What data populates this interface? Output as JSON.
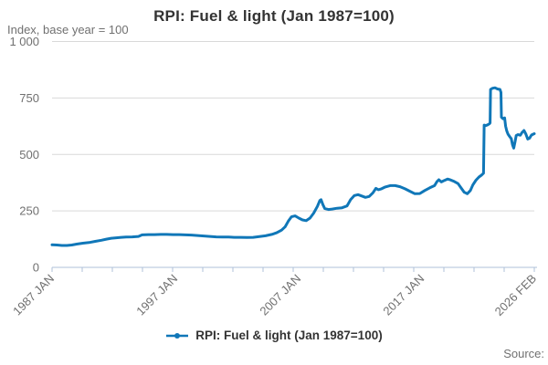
{
  "page": {
    "title": "RPI: Fuel & light (Jan 1987=100)",
    "subtitle": "Index, base year = 100"
  },
  "legend": {
    "label": "RPI: Fuel & light (Jan 1987=100)"
  },
  "footer": {
    "source_label": "Source:"
  },
  "colors": {
    "line": "#1077b8",
    "grid": "#d9d9d9",
    "axis": "#afc1d8",
    "muted_text": "#707070",
    "title_text": "#333333"
  },
  "chart_data": {
    "type": "line",
    "title": "RPI: Fuel & light (Jan 1987=100)",
    "subtitle": "Index, base year = 100",
    "xlabel": "",
    "ylabel": "Index, base year = 100",
    "ylim": [
      0,
      1000
    ],
    "yticks": [
      0,
      250,
      500,
      750,
      1000
    ],
    "ytick_labels": [
      "0",
      "250",
      "500",
      "750",
      "1 000"
    ],
    "xlim": [
      1987.0,
      2026.083
    ],
    "x_minor_tick_count": 17,
    "x_tick_labels": [
      {
        "text": "1987 JAN",
        "x": 1987.0
      },
      {
        "text": "1997 JAN",
        "x": 1997.0
      },
      {
        "text": "2007 JAN",
        "x": 2007.0
      },
      {
        "text": "2017 JAN",
        "x": 2017.0
      },
      {
        "text": "2026 FEB",
        "x": 2026.083
      }
    ],
    "grid": "horizontal",
    "legend_position": "bottom",
    "series": [
      {
        "name": "RPI: Fuel & light (Jan 1987=100)",
        "color": "#1077b8",
        "points": [
          [
            1987.0,
            100
          ],
          [
            1987.4,
            99
          ],
          [
            1987.8,
            97
          ],
          [
            1988.2,
            97
          ],
          [
            1988.6,
            99
          ],
          [
            1989.0,
            103
          ],
          [
            1989.5,
            107
          ],
          [
            1990.0,
            110
          ],
          [
            1990.5,
            115
          ],
          [
            1991.0,
            120
          ],
          [
            1991.4,
            125
          ],
          [
            1991.8,
            129
          ],
          [
            1992.2,
            131
          ],
          [
            1992.6,
            133
          ],
          [
            1993.0,
            134
          ],
          [
            1993.5,
            135
          ],
          [
            1994.0,
            137
          ],
          [
            1994.3,
            144
          ],
          [
            1994.8,
            145
          ],
          [
            1995.3,
            145
          ],
          [
            1995.8,
            146
          ],
          [
            1996.3,
            146
          ],
          [
            1996.8,
            145
          ],
          [
            1997.3,
            145
          ],
          [
            1997.8,
            144
          ],
          [
            1998.3,
            143
          ],
          [
            1998.8,
            141
          ],
          [
            1999.3,
            139
          ],
          [
            1999.8,
            137
          ],
          [
            2000.3,
            135
          ],
          [
            2000.8,
            134
          ],
          [
            2001.3,
            134
          ],
          [
            2001.8,
            133
          ],
          [
            2002.3,
            133
          ],
          [
            2002.8,
            132
          ],
          [
            2003.3,
            133
          ],
          [
            2003.8,
            136
          ],
          [
            2004.3,
            140
          ],
          [
            2004.8,
            146
          ],
          [
            2005.2,
            153
          ],
          [
            2005.6,
            165
          ],
          [
            2005.9,
            180
          ],
          [
            2006.15,
            205
          ],
          [
            2006.4,
            224
          ],
          [
            2006.7,
            228
          ],
          [
            2007.0,
            218
          ],
          [
            2007.3,
            210
          ],
          [
            2007.6,
            207
          ],
          [
            2007.9,
            218
          ],
          [
            2008.2,
            240
          ],
          [
            2008.5,
            270
          ],
          [
            2008.7,
            296
          ],
          [
            2008.8,
            300
          ],
          [
            2008.95,
            278
          ],
          [
            2009.1,
            260
          ],
          [
            2009.4,
            256
          ],
          [
            2009.7,
            258
          ],
          [
            2010.1,
            262
          ],
          [
            2010.5,
            264
          ],
          [
            2010.9,
            272
          ],
          [
            2011.2,
            300
          ],
          [
            2011.5,
            318
          ],
          [
            2011.8,
            322
          ],
          [
            2012.1,
            316
          ],
          [
            2012.4,
            310
          ],
          [
            2012.7,
            314
          ],
          [
            2013.0,
            330
          ],
          [
            2013.25,
            350
          ],
          [
            2013.45,
            344
          ],
          [
            2013.7,
            348
          ],
          [
            2014.0,
            356
          ],
          [
            2014.4,
            362
          ],
          [
            2014.8,
            362
          ],
          [
            2015.2,
            357
          ],
          [
            2015.6,
            348
          ],
          [
            2016.0,
            337
          ],
          [
            2016.4,
            326
          ],
          [
            2016.8,
            327
          ],
          [
            2017.2,
            340
          ],
          [
            2017.6,
            352
          ],
          [
            2018.0,
            362
          ],
          [
            2018.2,
            380
          ],
          [
            2018.35,
            388
          ],
          [
            2018.55,
            378
          ],
          [
            2018.8,
            385
          ],
          [
            2019.05,
            391
          ],
          [
            2019.3,
            387
          ],
          [
            2019.6,
            380
          ],
          [
            2019.9,
            371
          ],
          [
            2020.15,
            352
          ],
          [
            2020.4,
            333
          ],
          [
            2020.65,
            326
          ],
          [
            2020.9,
            340
          ],
          [
            2021.1,
            365
          ],
          [
            2021.35,
            386
          ],
          [
            2021.6,
            400
          ],
          [
            2021.8,
            408
          ],
          [
            2021.97,
            417
          ],
          [
            2022.02,
            630
          ],
          [
            2022.15,
            628
          ],
          [
            2022.3,
            631
          ],
          [
            2022.45,
            636
          ],
          [
            2022.5,
            640
          ],
          [
            2022.54,
            788
          ],
          [
            2022.7,
            793
          ],
          [
            2022.9,
            795
          ],
          [
            2023.1,
            790
          ],
          [
            2023.3,
            788
          ],
          [
            2023.38,
            775
          ],
          [
            2023.42,
            665
          ],
          [
            2023.55,
            658
          ],
          [
            2023.68,
            662
          ],
          [
            2023.76,
            625
          ],
          [
            2023.85,
            605
          ],
          [
            2023.95,
            590
          ],
          [
            2024.1,
            578
          ],
          [
            2024.22,
            570
          ],
          [
            2024.32,
            542
          ],
          [
            2024.42,
            528
          ],
          [
            2024.52,
            556
          ],
          [
            2024.62,
            584
          ],
          [
            2024.75,
            588
          ],
          [
            2024.95,
            585
          ],
          [
            2025.1,
            598
          ],
          [
            2025.25,
            606
          ],
          [
            2025.4,
            590
          ],
          [
            2025.55,
            568
          ],
          [
            2025.7,
            572
          ],
          [
            2025.85,
            586
          ],
          [
            2026.0,
            590
          ],
          [
            2026.08,
            592
          ]
        ]
      }
    ]
  }
}
